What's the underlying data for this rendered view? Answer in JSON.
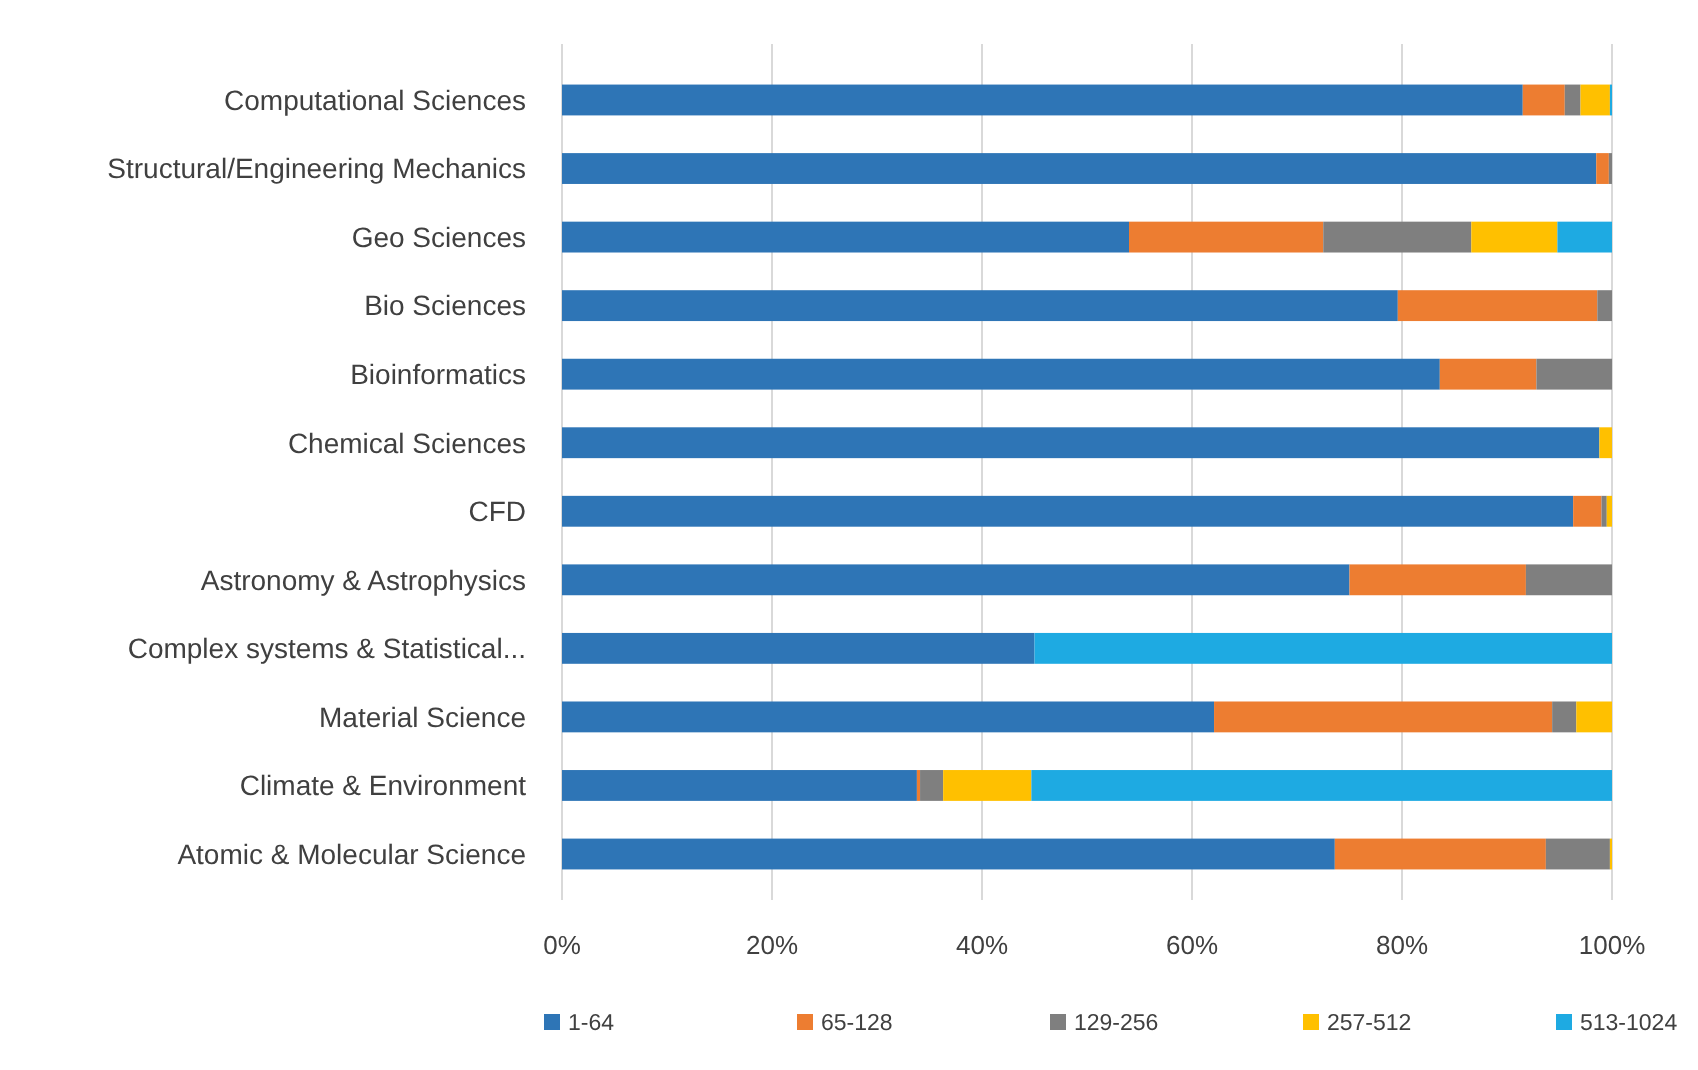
{
  "chart_data": {
    "type": "bar",
    "orientation": "horizontal",
    "stacked": true,
    "categories": [
      "Computational Sciences",
      "Structural/Engineering Mechanics",
      "Geo Sciences",
      "Bio Sciences",
      "Bioinformatics",
      "Chemical Sciences",
      "CFD",
      "Astronomy & Astrophysics",
      "Complex systems & Statistical...",
      "Material Science",
      "Climate & Environment",
      "Atomic & Molecular Science"
    ],
    "series": [
      {
        "name": "1-64",
        "color": "#2e75b6",
        "values": [
          91.5,
          98.5,
          54,
          79.6,
          83.6,
          98.8,
          96.3,
          75,
          45,
          62.1,
          33.8,
          73.6
        ]
      },
      {
        "name": "65-128",
        "color": "#ed7d31",
        "values": [
          4,
          1.2,
          18.5,
          19,
          9.2,
          0,
          2.7,
          16.8,
          0,
          32.2,
          0.3,
          20.1
        ]
      },
      {
        "name": "129-256",
        "color": "#7f7f7f",
        "values": [
          1.5,
          0.3,
          14.1,
          1.4,
          7.2,
          0,
          0.5,
          8.2,
          0,
          2.3,
          2.2,
          6.1
        ]
      },
      {
        "name": "257-512",
        "color": "#ffc000",
        "values": [
          2.8,
          0,
          8.2,
          0,
          0,
          1.2,
          0.5,
          0,
          0,
          3.4,
          8.4,
          0.2
        ]
      },
      {
        "name": "513-1024",
        "color": "#1eaae2",
        "values": [
          0.2,
          0,
          5.2,
          0,
          0,
          0,
          0,
          0,
          55,
          0,
          55.3,
          0
        ]
      }
    ],
    "xlim": [
      0,
      100
    ],
    "xticks": [
      {
        "value": 0,
        "label": "0%"
      },
      {
        "value": 20,
        "label": "20%"
      },
      {
        "value": 40,
        "label": "40%"
      },
      {
        "value": 60,
        "label": "60%"
      },
      {
        "value": 80,
        "label": "80%"
      },
      {
        "value": 100,
        "label": "100%"
      }
    ],
    "grid": "x",
    "legend": "bottom"
  }
}
